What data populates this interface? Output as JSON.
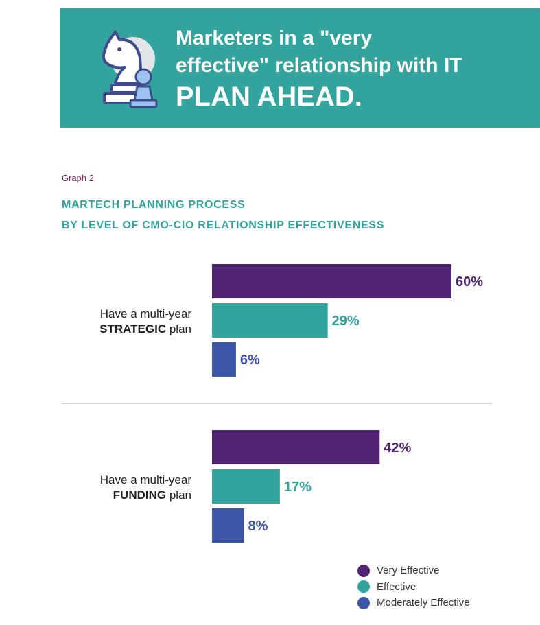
{
  "banner": {
    "line1": "Marketers in a \"very",
    "line2": "effective\" relationship with IT",
    "emphasis": "PLAN AHEAD.",
    "background": "#33A39E",
    "icon": "chess-knight-pawn-icon"
  },
  "graph_label": "Graph 2",
  "chart_title": {
    "line1": "MARTECH PLANNING PROCESS",
    "line2": "BY LEVEL OF CMO-CIO RELATIONSHIP EFFECTIVENESS"
  },
  "colors": {
    "very_effective": "#512573",
    "effective": "#33A39E",
    "moderately_effective": "#3D55A8",
    "title": "#33A39E",
    "graph_label": "#7B1F5B"
  },
  "chart_data": {
    "type": "bar",
    "orientation": "horizontal",
    "unit": "%",
    "categories": [
      {
        "pre": "Have a multi-year",
        "bold": "STRATEGIC",
        "post": "plan"
      },
      {
        "pre": "Have a multi-year",
        "bold": "FUNDING",
        "post": "plan"
      }
    ],
    "series": [
      {
        "name": "Very Effective",
        "color": "#512573",
        "values": [
          60,
          42
        ]
      },
      {
        "name": "Effective",
        "color": "#33A39E",
        "values": [
          29,
          17
        ]
      },
      {
        "name": "Moderately Effective",
        "color": "#3D55A8",
        "values": [
          6,
          8
        ]
      }
    ],
    "xlim": [
      0,
      60
    ],
    "grid": false,
    "legend_position": "bottom-right"
  }
}
